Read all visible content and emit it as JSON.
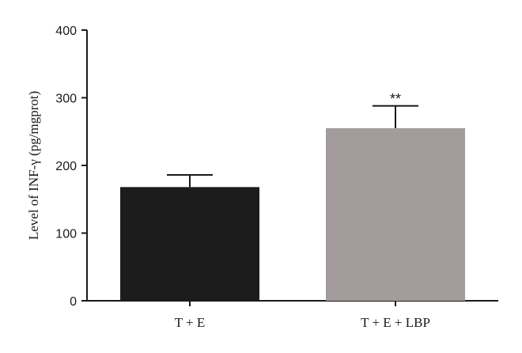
{
  "chart_data": {
    "type": "bar",
    "categories": [
      "T + E",
      "T + E + LBP"
    ],
    "values": [
      168,
      255
    ],
    "errors": [
      18,
      33
    ],
    "annotations": [
      "",
      "**"
    ],
    "colors": [
      "#1c1c1c",
      "#a49c9c"
    ],
    "ylabel": "Level of INF-γ (pg/mgprot)",
    "ylim": [
      0,
      400
    ],
    "yticks": [
      0,
      100,
      200,
      300,
      400
    ],
    "grid": false,
    "legend": "none"
  }
}
